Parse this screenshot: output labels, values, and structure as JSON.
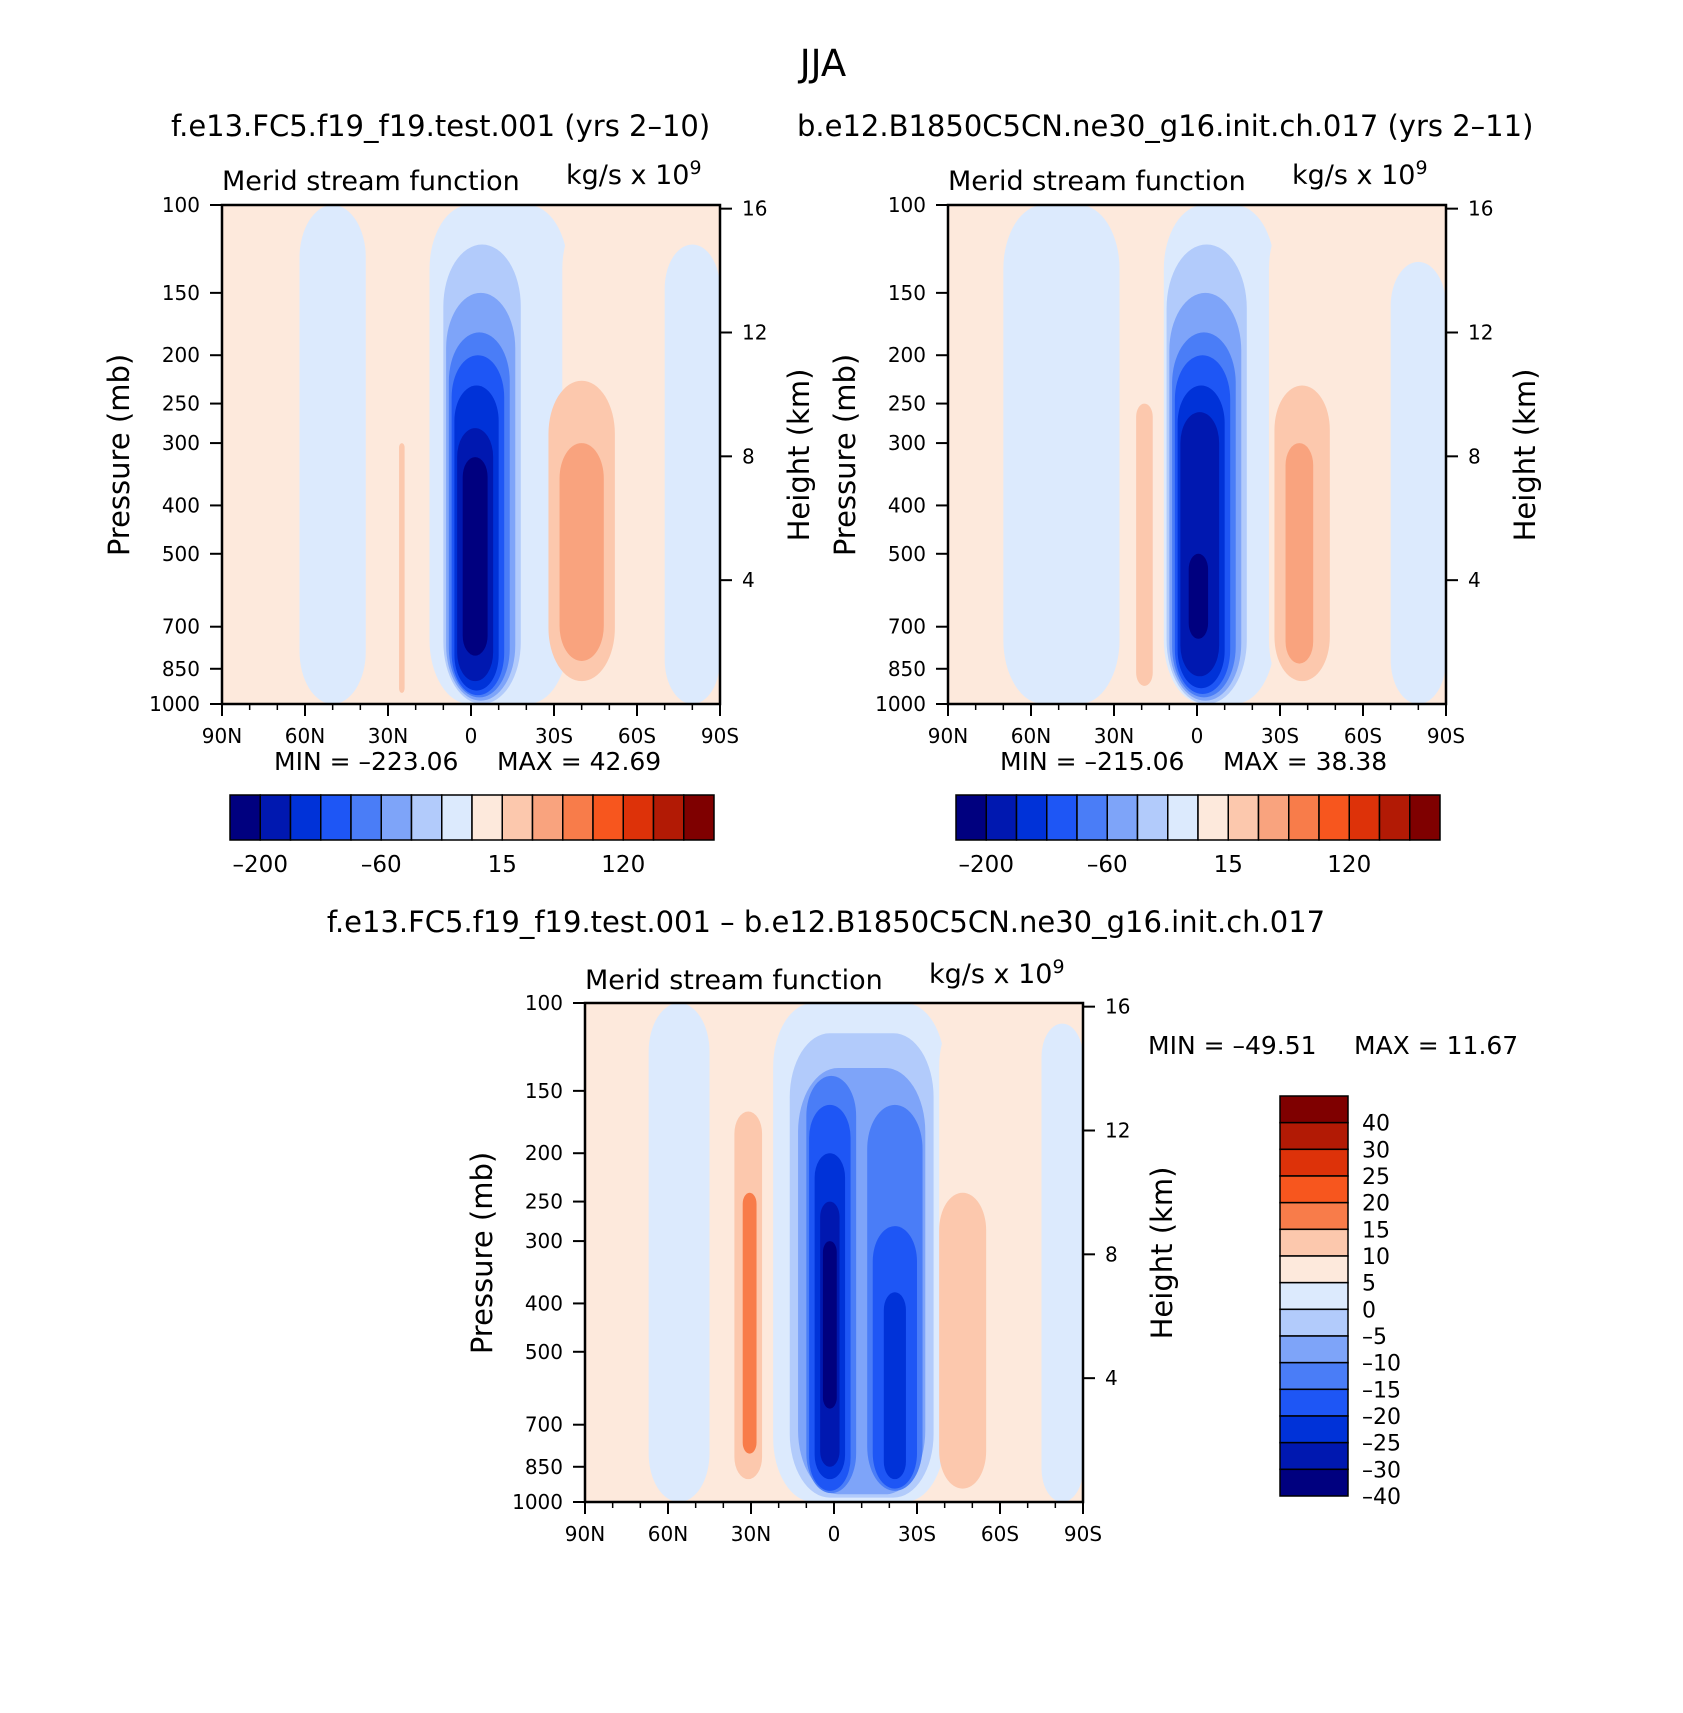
{
  "figure": {
    "title": "JJA",
    "header_left": "f.e13.FC5.f19_f19.test.001 (yrs 2–10)",
    "header_right": "b.e12.B1850C5CN.ne30_g16.init.ch.017 (yrs 2–11)",
    "diff_title": "f.e13.FC5.f19_f19.test.001 – b.e12.B1850C5CN.ne30_g16.init.ch.017"
  },
  "colors": {
    "main_scale": [
      "#00007f",
      "#0018b0",
      "#0032d8",
      "#1e56f5",
      "#4a7df7",
      "#7ea4f9",
      "#b2cbfb",
      "#dceafd",
      "#fde9dc",
      "#fcc8ad",
      "#f9a37e",
      "#f87c4a",
      "#f7561e",
      "#dd3209",
      "#b21a05",
      "#7f0000"
    ],
    "diff_scale": [
      "#00007f",
      "#0018b0",
      "#0032d8",
      "#1e56f5",
      "#4a7df7",
      "#7ea4f9",
      "#b2cbfb",
      "#dceafd",
      "#fde9dc",
      "#fcc8ad",
      "#f87c4a",
      "#f7561e",
      "#dd3209",
      "#b21a05",
      "#7f0000"
    ]
  },
  "chart_data": [
    {
      "type": "heatmap",
      "name": "control",
      "subtitle": "Merid stream function",
      "units_prefix": "kg/s x 10",
      "units_exp": "9",
      "ylabel": "Pressure (mb)",
      "y2label": "Height (km)",
      "xlabel": "",
      "x_ticks": [
        "90N",
        "60N",
        "30N",
        "0",
        "30S",
        "60S",
        "90S"
      ],
      "x_values": [
        90,
        60,
        30,
        0,
        -30,
        -60,
        -90
      ],
      "xlim": [
        90,
        -90
      ],
      "y_ticks": [
        100,
        150,
        200,
        250,
        300,
        400,
        500,
        700,
        850,
        1000
      ],
      "ylim": [
        1000,
        100
      ],
      "y2_ticks": [
        4,
        8,
        12,
        16
      ],
      "min_label": "MIN = –223.06",
      "max_label": "MAX = 42.69",
      "colorbar_labels": [
        "–200",
        "–60",
        "15",
        "120"
      ],
      "cells": [
        {
          "lat0": 90,
          "lat1": 62,
          "p0": 100,
          "p1": 1000,
          "level": 8
        },
        {
          "lat0": 62,
          "lat1": 38,
          "p0": 100,
          "p1": 1000,
          "level": 7
        },
        {
          "lat0": 38,
          "lat1": 16,
          "p0": 100,
          "p1": 1000,
          "level": 8
        },
        {
          "lat0": 26,
          "lat1": 24,
          "p0": 300,
          "p1": 950,
          "level": 9
        },
        {
          "lat0": 15,
          "lat1": -35,
          "p0": 100,
          "p1": 1000,
          "level": 7
        },
        {
          "lat0": -33,
          "lat1": -90,
          "p0": 100,
          "p1": 1000,
          "level": 8
        },
        {
          "lat0": -70,
          "lat1": -90,
          "p0": 120,
          "p1": 1000,
          "level": 7
        },
        {
          "lat0": -28,
          "lat1": -52,
          "p0": 225,
          "p1": 900,
          "level": 9
        },
        {
          "lat0": -32,
          "lat1": -48,
          "p0": 300,
          "p1": 820,
          "level": 10
        },
        {
          "lat0": 10,
          "lat1": -18,
          "p0": 120,
          "p1": 1000,
          "level": 6
        },
        {
          "lat0": 9,
          "lat1": -16,
          "p0": 150,
          "p1": 985,
          "level": 5
        },
        {
          "lat0": 8,
          "lat1": -14,
          "p0": 180,
          "p1": 970,
          "level": 4
        },
        {
          "lat0": 7,
          "lat1": -12,
          "p0": 200,
          "p1": 960,
          "level": 3
        },
        {
          "lat0": 6,
          "lat1": -10,
          "p0": 230,
          "p1": 940,
          "level": 2
        },
        {
          "lat0": 5,
          "lat1": -8,
          "p0": 280,
          "p1": 900,
          "level": 1
        },
        {
          "lat0": 3,
          "lat1": -6,
          "p0": 320,
          "p1": 800,
          "level": 0
        }
      ]
    },
    {
      "type": "heatmap",
      "name": "test",
      "subtitle": "Merid stream function",
      "units_prefix": "kg/s x 10",
      "units_exp": "9",
      "ylabel": "Pressure (mb)",
      "y2label": "Height (km)",
      "xlabel": "",
      "x_ticks": [
        "90N",
        "60N",
        "30N",
        "0",
        "30S",
        "60S",
        "90S"
      ],
      "x_values": [
        90,
        60,
        30,
        0,
        -30,
        -60,
        -90
      ],
      "xlim": [
        90,
        -90
      ],
      "y_ticks": [
        100,
        150,
        200,
        250,
        300,
        400,
        500,
        700,
        850,
        1000
      ],
      "ylim": [
        1000,
        100
      ],
      "y2_ticks": [
        4,
        8,
        12,
        16
      ],
      "min_label": "MIN = –215.06",
      "max_label": "MAX = 38.38",
      "colorbar_labels": [
        "–200",
        "–60",
        "15",
        "120"
      ],
      "cells": [
        {
          "lat0": 90,
          "lat1": 70,
          "p0": 100,
          "p1": 1000,
          "level": 8
        },
        {
          "lat0": 70,
          "lat1": 28,
          "p0": 100,
          "p1": 1000,
          "level": 7
        },
        {
          "lat0": 28,
          "lat1": 12,
          "p0": 100,
          "p1": 1000,
          "level": 8
        },
        {
          "lat0": 22,
          "lat1": 16,
          "p0": 250,
          "p1": 920,
          "level": 9
        },
        {
          "lat0": 12,
          "lat1": -28,
          "p0": 100,
          "p1": 1000,
          "level": 7
        },
        {
          "lat0": -26,
          "lat1": -90,
          "p0": 100,
          "p1": 1000,
          "level": 8
        },
        {
          "lat0": -70,
          "lat1": -90,
          "p0": 130,
          "p1": 1000,
          "level": 7
        },
        {
          "lat0": -28,
          "lat1": -48,
          "p0": 230,
          "p1": 900,
          "level": 9
        },
        {
          "lat0": -32,
          "lat1": -42,
          "p0": 300,
          "p1": 830,
          "level": 10
        },
        {
          "lat0": 11,
          "lat1": -18,
          "p0": 120,
          "p1": 1000,
          "level": 6
        },
        {
          "lat0": 10,
          "lat1": -16,
          "p0": 150,
          "p1": 985,
          "level": 5
        },
        {
          "lat0": 9,
          "lat1": -14,
          "p0": 180,
          "p1": 970,
          "level": 4
        },
        {
          "lat0": 8,
          "lat1": -12,
          "p0": 200,
          "p1": 955,
          "level": 3
        },
        {
          "lat0": 7,
          "lat1": -10,
          "p0": 230,
          "p1": 930,
          "level": 2
        },
        {
          "lat0": 6,
          "lat1": -8,
          "p0": 260,
          "p1": 880,
          "level": 1
        },
        {
          "lat0": 3,
          "lat1": -4,
          "p0": 500,
          "p1": 740,
          "level": 0
        }
      ]
    },
    {
      "type": "heatmap",
      "name": "difference",
      "subtitle": "Merid stream function",
      "units_prefix": "kg/s x 10",
      "units_exp": "9",
      "ylabel": "Pressure (mb)",
      "y2label": "Height (km)",
      "xlabel": "",
      "x_ticks": [
        "90N",
        "60N",
        "30N",
        "0",
        "30S",
        "60S",
        "90S"
      ],
      "x_values": [
        90,
        60,
        30,
        0,
        -30,
        -60,
        -90
      ],
      "xlim": [
        90,
        -90
      ],
      "y_ticks": [
        100,
        150,
        200,
        250,
        300,
        400,
        500,
        700,
        850,
        1000
      ],
      "ylim": [
        1000,
        100
      ],
      "y2_ticks": [
        4,
        8,
        12,
        16
      ],
      "min_label": "MIN = –49.51",
      "max_label": "MAX = 11.67",
      "colorbar_labels": [
        "40",
        "30",
        "25",
        "20",
        "15",
        "10",
        "5",
        "0",
        "–5",
        "–10",
        "–15",
        "–20",
        "–25",
        "–30",
        "–40"
      ],
      "cells": [
        {
          "lat0": 90,
          "lat1": 67,
          "p0": 100,
          "p1": 1000,
          "level": 8
        },
        {
          "lat0": 67,
          "lat1": 45,
          "p0": 100,
          "p1": 1000,
          "level": 7
        },
        {
          "lat0": 45,
          "lat1": 22,
          "p0": 100,
          "p1": 1000,
          "level": 8
        },
        {
          "lat0": 36,
          "lat1": 26,
          "p0": 165,
          "p1": 900,
          "level": 9
        },
        {
          "lat0": 33,
          "lat1": 28,
          "p0": 240,
          "p1": 800,
          "level": 10
        },
        {
          "lat0": 22,
          "lat1": -40,
          "p0": 100,
          "p1": 1000,
          "level": 7
        },
        {
          "lat0": -38,
          "lat1": -90,
          "p0": 100,
          "p1": 1000,
          "level": 8
        },
        {
          "lat0": -75,
          "lat1": -90,
          "p0": 110,
          "p1": 1000,
          "level": 7
        },
        {
          "lat0": -38,
          "lat1": -55,
          "p0": 240,
          "p1": 940,
          "level": 9
        },
        {
          "lat0": 16,
          "lat1": -36,
          "p0": 115,
          "p1": 980,
          "level": 6
        },
        {
          "lat0": 13,
          "lat1": -33,
          "p0": 135,
          "p1": 965,
          "level": 5
        },
        {
          "lat0": 10,
          "lat1": -8,
          "p0": 140,
          "p1": 960,
          "level": 4
        },
        {
          "lat0": -12,
          "lat1": -32,
          "p0": 160,
          "p1": 950,
          "level": 4
        },
        {
          "lat0": 9,
          "lat1": -6,
          "p0": 160,
          "p1": 950,
          "level": 3
        },
        {
          "lat0": -14,
          "lat1": -30,
          "p0": 280,
          "p1": 940,
          "level": 3
        },
        {
          "lat0": 7,
          "lat1": -4,
          "p0": 200,
          "p1": 900,
          "level": 2
        },
        {
          "lat0": -18,
          "lat1": -26,
          "p0": 380,
          "p1": 900,
          "level": 2
        },
        {
          "lat0": 5,
          "lat1": -2,
          "p0": 250,
          "p1": 850,
          "level": 1
        },
        {
          "lat0": 4,
          "lat1": -1,
          "p0": 300,
          "p1": 650,
          "level": 0
        }
      ]
    }
  ]
}
